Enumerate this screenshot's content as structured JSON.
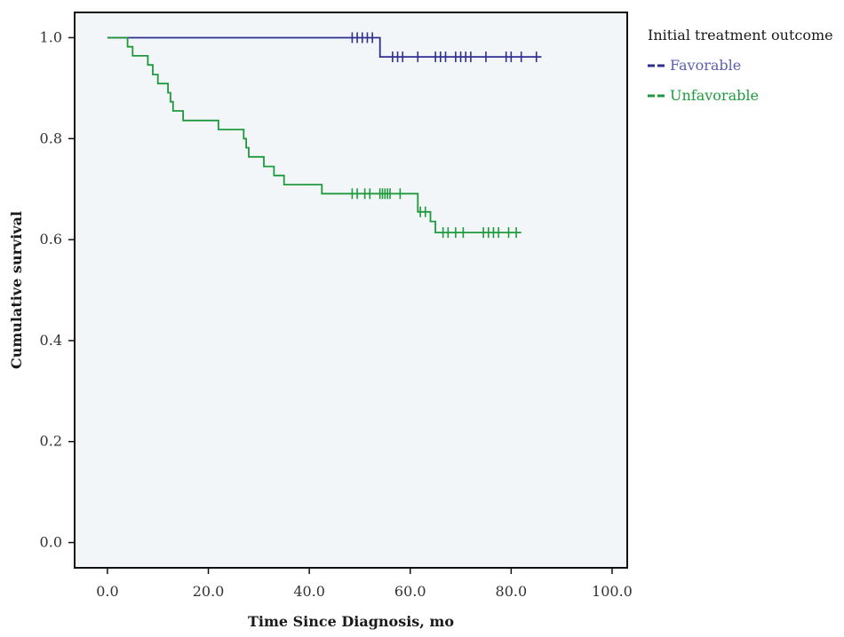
{
  "chart_data": {
    "type": "line",
    "title": "",
    "xlabel": "Time Since Diagnosis, mo",
    "ylabel": "Cumulative survival",
    "xlim": [
      -6.5,
      103
    ],
    "ylim": [
      -0.05,
      1.05
    ],
    "x_ticks": [
      "0.0",
      "20.0",
      "40.0",
      "60.0",
      "80.0",
      "100.0"
    ],
    "x_tick_values": [
      0,
      20,
      40,
      60,
      80,
      100
    ],
    "y_ticks": [
      "0.0",
      "0.2",
      "0.4",
      "0.6",
      "0.8",
      "1.0"
    ],
    "y_tick_values": [
      0,
      0.2,
      0.4,
      0.6,
      0.8,
      1.0
    ],
    "grid": false,
    "background": "#f3f6f8",
    "legend": {
      "title": "Initial treatment outcome",
      "position": "right"
    },
    "series": [
      {
        "name": "Favorable",
        "color": "#2e2f8f",
        "label_color": "#5b5fb0",
        "step": [
          [
            0,
            1.0
          ],
          [
            54,
            1.0
          ],
          [
            54,
            0.962
          ],
          [
            86,
            0.962
          ]
        ],
        "censored": [
          [
            48.5,
            1.0
          ],
          [
            49.5,
            1.0
          ],
          [
            50.5,
            1.0
          ],
          [
            51.5,
            1.0
          ],
          [
            52.5,
            1.0
          ],
          [
            56.5,
            0.962
          ],
          [
            57.5,
            0.962
          ],
          [
            58.5,
            0.962
          ],
          [
            61.5,
            0.962
          ],
          [
            65,
            0.962
          ],
          [
            66,
            0.962
          ],
          [
            67,
            0.962
          ],
          [
            69,
            0.962
          ],
          [
            70,
            0.962
          ],
          [
            71,
            0.962
          ],
          [
            72,
            0.962
          ],
          [
            75,
            0.962
          ],
          [
            79,
            0.962
          ],
          [
            80,
            0.962
          ],
          [
            82,
            0.962
          ],
          [
            85,
            0.962
          ]
        ]
      },
      {
        "name": "Unfavorable",
        "color": "#1e9a3c",
        "label_color": "#1e9a3c",
        "step": [
          [
            0,
            1.0
          ],
          [
            4,
            1.0
          ],
          [
            4,
            0.982
          ],
          [
            5,
            0.982
          ],
          [
            5,
            0.964
          ],
          [
            8,
            0.964
          ],
          [
            8,
            0.946
          ],
          [
            9,
            0.946
          ],
          [
            9,
            0.927
          ],
          [
            10,
            0.927
          ],
          [
            10,
            0.909
          ],
          [
            12,
            0.909
          ],
          [
            12,
            0.891
          ],
          [
            12.5,
            0.891
          ],
          [
            12.5,
            0.873
          ],
          [
            13,
            0.873
          ],
          [
            13,
            0.855
          ],
          [
            15,
            0.855
          ],
          [
            15,
            0.836
          ],
          [
            22,
            0.836
          ],
          [
            22,
            0.818
          ],
          [
            27,
            0.818
          ],
          [
            27,
            0.8
          ],
          [
            27.5,
            0.8
          ],
          [
            27.5,
            0.782
          ],
          [
            28,
            0.782
          ],
          [
            28,
            0.764
          ],
          [
            31,
            0.764
          ],
          [
            31,
            0.745
          ],
          [
            33,
            0.745
          ],
          [
            33,
            0.727
          ],
          [
            35,
            0.727
          ],
          [
            35,
            0.709
          ],
          [
            42.5,
            0.709
          ],
          [
            42.5,
            0.691
          ],
          [
            61.5,
            0.691
          ],
          [
            61.5,
            0.655
          ],
          [
            64,
            0.655
          ],
          [
            64,
            0.636
          ],
          [
            65,
            0.636
          ],
          [
            65,
            0.614
          ],
          [
            82,
            0.614
          ]
        ],
        "censored": [
          [
            48.5,
            0.691
          ],
          [
            49.5,
            0.691
          ],
          [
            51,
            0.691
          ],
          [
            52,
            0.691
          ],
          [
            54,
            0.691
          ],
          [
            54.5,
            0.691
          ],
          [
            55,
            0.691
          ],
          [
            55.5,
            0.691
          ],
          [
            56,
            0.691
          ],
          [
            58,
            0.691
          ],
          [
            62,
            0.655
          ],
          [
            63,
            0.655
          ],
          [
            66.5,
            0.614
          ],
          [
            67.5,
            0.614
          ],
          [
            69,
            0.614
          ],
          [
            70.5,
            0.614
          ],
          [
            74.5,
            0.614
          ],
          [
            75.5,
            0.614
          ],
          [
            76.5,
            0.614
          ],
          [
            77.5,
            0.614
          ],
          [
            79.5,
            0.614
          ],
          [
            81,
            0.614
          ]
        ]
      }
    ]
  }
}
